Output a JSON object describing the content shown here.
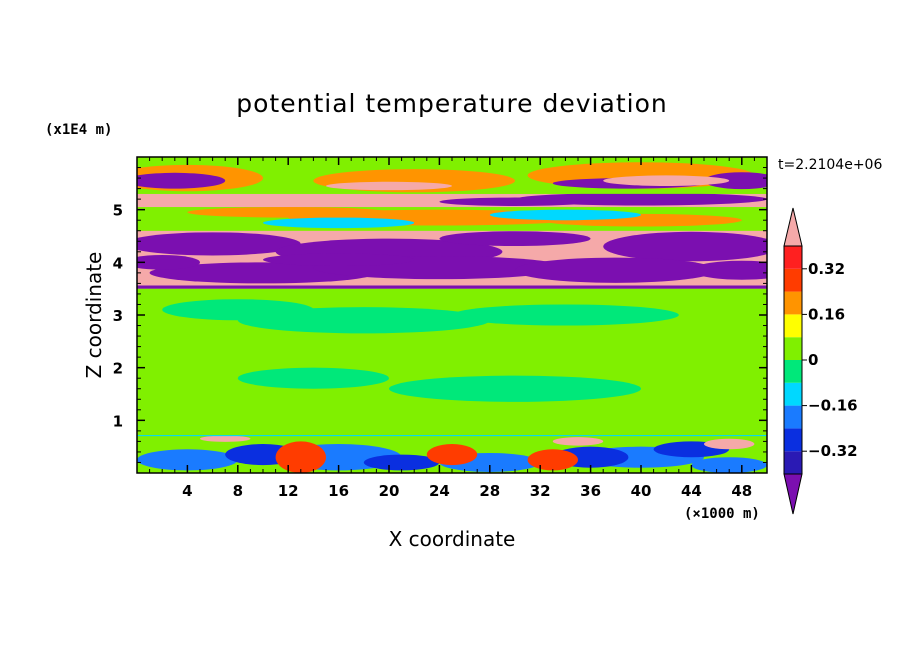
{
  "chart_data": {
    "type": "heatmap",
    "title": "potential temperature deviation",
    "xlabel": "X coordinate",
    "ylabel": "Z coordinate",
    "x_unit": "(×1000 m)",
    "y_unit": "(x1E4 m)",
    "time_label": "t=2.2104e+06",
    "xlim": [
      0,
      50
    ],
    "ylim": [
      0,
      6
    ],
    "x_ticks": [
      "4",
      "8",
      "12",
      "16",
      "20",
      "24",
      "28",
      "32",
      "36",
      "40",
      "44",
      "48"
    ],
    "x_tick_values": [
      4,
      8,
      12,
      16,
      20,
      24,
      28,
      32,
      36,
      40,
      44,
      48
    ],
    "y_ticks": [
      "1",
      "2",
      "3",
      "4",
      "5"
    ],
    "y_tick_values": [
      1,
      2,
      3,
      4,
      5
    ],
    "colorbar": {
      "labels": [
        "0.32",
        "0.16",
        "0",
        "−0.16",
        "−0.32"
      ],
      "label_values": [
        0.32,
        0.16,
        0,
        -0.16,
        -0.32
      ],
      "levels": [
        -0.4,
        -0.32,
        -0.24,
        -0.16,
        -0.08,
        0,
        0.08,
        0.16,
        0.24,
        0.32,
        0.4
      ],
      "colors": [
        "#7b0fb0",
        "#2a1ab4",
        "#0a2fe0",
        "#1a7bff",
        "#00d8ff",
        "#00e87a",
        "#80f000",
        "#ffff00",
        "#ff9400",
        "#ff3c00",
        "#ff2020",
        "#f5a9a9"
      ],
      "upper_extend_color": "#f5a9a9",
      "lower_extend_color": "#7b0fb0"
    },
    "regions": [
      {
        "z": [
          0.0,
          0.7
        ],
        "description_value": "mixed",
        "dominant": 0.04
      },
      {
        "z": [
          0.7,
          3.5
        ],
        "dominant": 0.02
      },
      {
        "z": [
          3.5,
          4.6
        ],
        "dominant": -0.4,
        "alternate": 0.4
      },
      {
        "z": [
          4.6,
          5.1
        ],
        "dominant": 0.04
      },
      {
        "z": [
          5.1,
          5.3
        ],
        "dominant": 0.4
      },
      {
        "z": [
          5.3,
          6.0
        ],
        "dominant": 0.04
      }
    ]
  }
}
